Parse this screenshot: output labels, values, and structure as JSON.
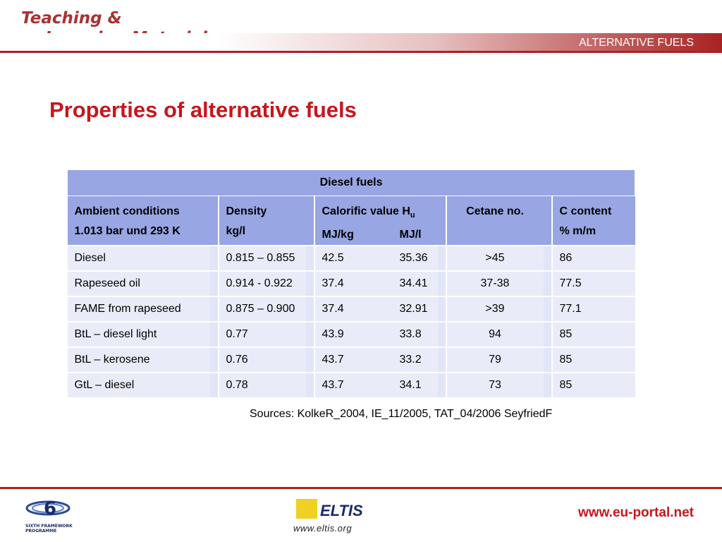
{
  "header": {
    "brand_line1": "Teaching &",
    "brand_line2": "Learning Materials",
    "section": "ALTERNATIVE FUELS"
  },
  "title": "Properties of alternative fuels",
  "table": {
    "caption": "Diesel fuels",
    "headers": {
      "ambient_l1": "Ambient conditions",
      "ambient_l2": "1.013 bar und 293 K",
      "density_l1": "Density",
      "density_l2": "kg/l",
      "calorific_l1": "Calorific value H",
      "calorific_sub": "u",
      "calorific_unit1": "MJ/kg",
      "calorific_unit2": "MJ/l",
      "cetane": "Cetane no.",
      "c_content_l1": "C content",
      "c_content_l2": "% m/m"
    },
    "rows": [
      {
        "name": "Diesel",
        "density": "0.815 – 0.855",
        "cal_kg": "42.5",
        "cal_l": "35.36",
        "cetane": ">45",
        "c": "86"
      },
      {
        "name": "Rapeseed oil",
        "density": "0.914 - 0.922",
        "cal_kg": "37.4",
        "cal_l": "34.41",
        "cetane": "37-38",
        "c": "77.5"
      },
      {
        "name": "FAME from rapeseed",
        "density": "0.875 – 0.900",
        "cal_kg": "37.4",
        "cal_l": "32.91",
        "cetane": ">39",
        "c": "77.1"
      },
      {
        "name": "BtL – diesel light",
        "density": "0.77",
        "cal_kg": "43.9",
        "cal_l": "33.8",
        "cetane": "94",
        "c": "85"
      },
      {
        "name": "BtL – kerosene",
        "density": "0.76",
        "cal_kg": "43.7",
        "cal_l": "33.2",
        "cetane": "79",
        "c": "85"
      },
      {
        "name": "GtL – diesel",
        "density": "0.78",
        "cal_kg": "43.7",
        "cal_l": "34.1",
        "cetane": "73",
        "c": "85"
      }
    ]
  },
  "sources": "Sources: KolkeR_2004, IE_11/2005, TAT_04/2006 SeyfriedF",
  "footer": {
    "fp6_line1": "SIXTH FRAMEWORK",
    "fp6_line2": "PROGRAMME",
    "eltis_name": "ELTIS",
    "eltis_url": "www.eltis.org",
    "portal": "www.eu-portal.net"
  }
}
